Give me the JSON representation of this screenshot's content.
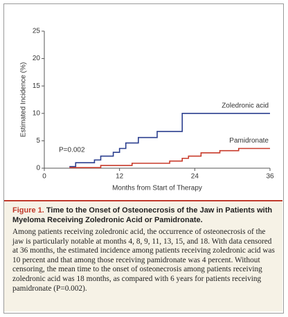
{
  "chart_data": {
    "type": "line",
    "y_label": "Estimated Incidence (%)",
    "x_label": "Months from Start of Therapy",
    "annotation": "P=0.002",
    "xlim": [
      0,
      36
    ],
    "xticks": [
      0,
      12,
      24,
      36
    ],
    "ylim": [
      0,
      25
    ],
    "yticks": [
      0,
      5,
      10,
      15,
      20,
      25
    ],
    "step": true,
    "series": [
      {
        "name": "Zoledronic acid",
        "color": "#2b3f8f",
        "x": [
          4,
          5,
          8,
          9,
          11,
          12,
          13,
          15,
          18,
          22,
          36
        ],
        "values": [
          0.3,
          1.0,
          1.5,
          2.2,
          2.9,
          3.6,
          4.6,
          5.6,
          6.7,
          10,
          10
        ]
      },
      {
        "name": "Pamidronate",
        "color": "#c83a2a",
        "x": [
          4,
          9,
          14,
          20,
          22,
          23,
          25,
          28,
          31,
          36
        ],
        "values": [
          0.1,
          0.5,
          0.9,
          1.3,
          1.8,
          2.2,
          2.8,
          3.2,
          3.6,
          3.6
        ]
      }
    ]
  },
  "caption": {
    "label": "Figure 1.",
    "title": "Time to the Onset of Osteonecrosis of the Jaw in Patients with Myeloma Receiving Zoledronic Acid or Pamidronate.",
    "body": "Among patients receiving zoledronic acid, the occurrence of osteonecrosis of the jaw is particularly notable at months 4, 8, 9, 11, 13, 15, and 18. With data censored at 36 months, the estimated incidence among patients receiving zoledronic acid was 10 percent and that among those receiving pamidronate was 4 percent. Without censoring, the mean time to the onset of osteonecrosis among patients receiving zoledronic acid was 18 months, as compared with 6 years for patients receiving pamidronate (P=0.002)."
  }
}
